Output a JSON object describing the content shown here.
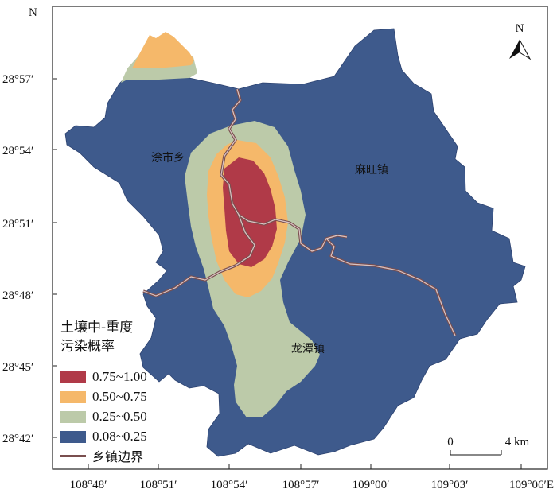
{
  "map": {
    "north_arrow_label": "N",
    "corner_axis_label": "N",
    "scale_bar": {
      "start_label": "0",
      "end_label": "4 km"
    },
    "y_ticks": [
      "28°57′",
      "28°54′",
      "28°51′",
      "28°48′",
      "28°45′",
      "28°42′"
    ],
    "x_ticks": [
      "108°48′",
      "108°51′",
      "108°54′",
      "108°57′",
      "109°00′",
      "109°03′",
      "109°06′E"
    ],
    "towns": [
      {
        "name": "涂市乡"
      },
      {
        "name": "麻旺镇"
      },
      {
        "name": "龙潭镇"
      }
    ],
    "colors": {
      "class_1": "#b03a48",
      "class_2": "#f5b86a",
      "class_3": "#bccaa9",
      "class_4": "#3e5a8c",
      "boundary": "#a07070"
    }
  },
  "legend": {
    "title_line1": "土壤中-重度",
    "title_line2": "污染概率",
    "items": [
      {
        "label": "0.75~1.00",
        "color": "#b03a48"
      },
      {
        "label": "0.50~0.75",
        "color": "#f5b86a"
      },
      {
        "label": "0.25~0.50",
        "color": "#bccaa9"
      },
      {
        "label": "0.08~0.25",
        "color": "#3e5a8c"
      }
    ],
    "boundary_label": "乡镇边界"
  }
}
